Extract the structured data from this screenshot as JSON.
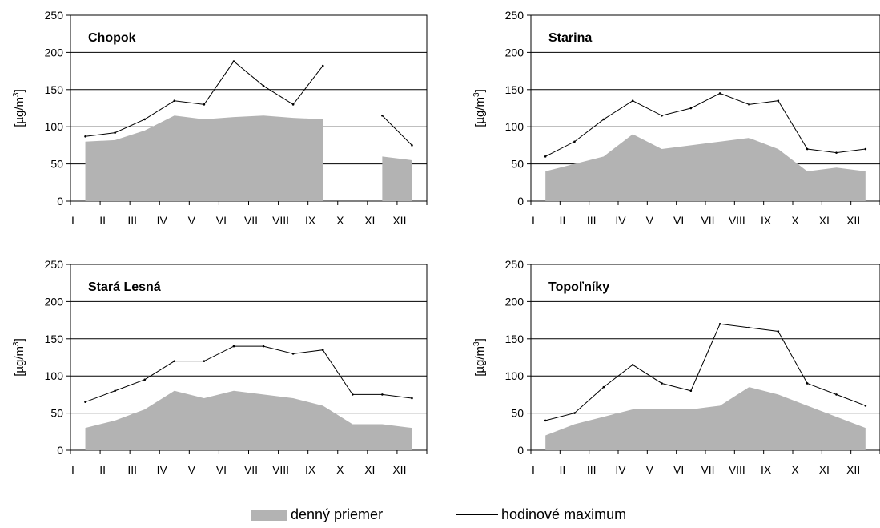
{
  "chart_data": [
    {
      "type": "area",
      "title": "Chopok",
      "ylabel": "[µg/m3]",
      "ylim": [
        0,
        250
      ],
      "yticks": [
        0,
        50,
        100,
        150,
        200,
        250
      ],
      "categories": [
        "I",
        "II",
        "III",
        "IV",
        "V",
        "VI",
        "VII",
        "VIII",
        "IX",
        "X",
        "XI",
        "XII"
      ],
      "grid": "horizontal",
      "series": [
        {
          "name": "denný priemer",
          "style": "filled-area",
          "color": "#b3b3b3",
          "x": [
            "I",
            "II",
            "III",
            "IV",
            "V",
            "VI",
            "VII",
            "VIII",
            "IX",
            "X",
            "XI",
            "XII"
          ],
          "values": [
            80,
            82,
            95,
            115,
            110,
            113,
            115,
            112,
            110,
            null,
            60,
            55
          ]
        },
        {
          "name": "hodinové maximum",
          "style": "line",
          "color": "#000000",
          "x": [
            "I",
            "II",
            "III",
            "IV",
            "V",
            "VI",
            "VII",
            "VIII",
            "IX",
            "X",
            "XI",
            "XII"
          ],
          "values": [
            87,
            92,
            110,
            135,
            130,
            188,
            155,
            130,
            182,
            null,
            115,
            75
          ]
        }
      ]
    },
    {
      "type": "area",
      "title": "Starina",
      "ylabel": "[µg/m3]",
      "ylim": [
        0,
        250
      ],
      "yticks": [
        0,
        50,
        100,
        150,
        200,
        250
      ],
      "categories": [
        "I",
        "II",
        "III",
        "IV",
        "V",
        "VI",
        "VII",
        "VIII",
        "IX",
        "X",
        "XI",
        "XII"
      ],
      "grid": "horizontal",
      "series": [
        {
          "name": "denný priemer",
          "style": "filled-area",
          "color": "#b3b3b3",
          "x": [
            "I",
            "II",
            "III",
            "IV",
            "V",
            "VI",
            "VII",
            "VIII",
            "IX",
            "X",
            "XI",
            "XII"
          ],
          "values": [
            40,
            50,
            60,
            90,
            70,
            75,
            80,
            85,
            70,
            40,
            45,
            40
          ]
        },
        {
          "name": "hodinové maximum",
          "style": "line",
          "color": "#000000",
          "x": [
            "I",
            "II",
            "III",
            "IV",
            "V",
            "VI",
            "VII",
            "VIII",
            "IX",
            "X",
            "XI",
            "XII"
          ],
          "values": [
            60,
            80,
            110,
            135,
            115,
            125,
            145,
            130,
            135,
            70,
            65,
            70
          ]
        }
      ]
    },
    {
      "type": "area",
      "title": "Stará Lesná",
      "ylabel": "[µg/m3]",
      "ylim": [
        0,
        250
      ],
      "yticks": [
        0,
        50,
        100,
        150,
        200,
        250
      ],
      "categories": [
        "I",
        "II",
        "III",
        "IV",
        "V",
        "VI",
        "VII",
        "VIII",
        "IX",
        "X",
        "XI",
        "XII"
      ],
      "grid": "horizontal",
      "series": [
        {
          "name": "denný priemer",
          "style": "filled-area",
          "color": "#b3b3b3",
          "x": [
            "I",
            "II",
            "III",
            "IV",
            "V",
            "VI",
            "VII",
            "VIII",
            "IX",
            "X",
            "XI",
            "XII"
          ],
          "values": [
            30,
            40,
            55,
            80,
            70,
            80,
            75,
            70,
            60,
            35,
            35,
            30
          ]
        },
        {
          "name": "hodinové maximum",
          "style": "line",
          "color": "#000000",
          "x": [
            "I",
            "II",
            "III",
            "IV",
            "V",
            "VI",
            "VII",
            "VIII",
            "IX",
            "X",
            "XI",
            "XII"
          ],
          "values": [
            65,
            80,
            95,
            120,
            120,
            140,
            140,
            130,
            135,
            75,
            75,
            70
          ]
        }
      ]
    },
    {
      "type": "area",
      "title": "Topoľníky",
      "ylabel": "[µg/m3]",
      "ylim": [
        0,
        250
      ],
      "yticks": [
        0,
        50,
        100,
        150,
        200,
        250
      ],
      "categories": [
        "I",
        "II",
        "III",
        "IV",
        "V",
        "VI",
        "VII",
        "VIII",
        "IX",
        "X",
        "XI",
        "XII"
      ],
      "grid": "horizontal",
      "series": [
        {
          "name": "denný priemer",
          "style": "filled-area",
          "color": "#b3b3b3",
          "x": [
            "I",
            "II",
            "III",
            "IV",
            "V",
            "VI",
            "VII",
            "VIII",
            "IX",
            "X",
            "XI",
            "XII"
          ],
          "values": [
            20,
            35,
            45,
            55,
            55,
            55,
            60,
            85,
            75,
            60,
            45,
            30
          ]
        },
        {
          "name": "hodinové maximum",
          "style": "line",
          "color": "#000000",
          "x": [
            "I",
            "II",
            "III",
            "IV",
            "V",
            "VI",
            "VII",
            "VIII",
            "IX",
            "X",
            "XI",
            "XII"
          ],
          "values": [
            40,
            50,
            85,
            115,
            90,
            80,
            170,
            165,
            160,
            90,
            75,
            60
          ]
        }
      ]
    }
  ],
  "legend": {
    "area_label": "denný priemer",
    "line_label": "hodinové maximum"
  }
}
